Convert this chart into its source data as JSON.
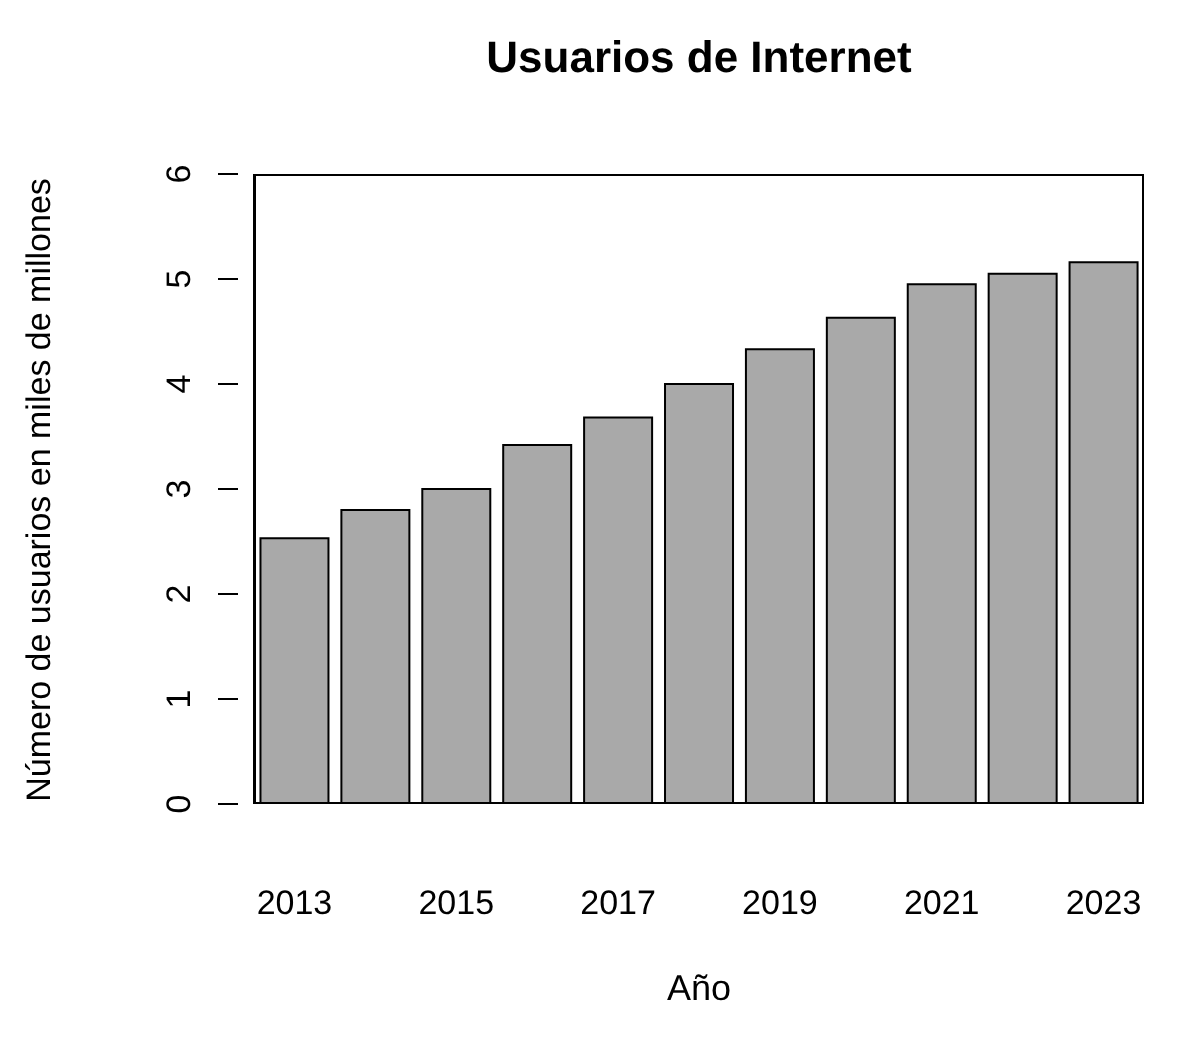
{
  "chart_data": {
    "type": "bar",
    "title": "Usuarios de Internet",
    "xlabel": "Año",
    "ylabel": "Número de usuarios en miles de millones",
    "categories": [
      "2013",
      null,
      "2015",
      null,
      "2017",
      null,
      "2019",
      null,
      "2021",
      null,
      "2023"
    ],
    "values": [
      2.53,
      2.8,
      3.0,
      3.42,
      3.68,
      4.0,
      4.33,
      4.63,
      4.95,
      5.05,
      5.16
    ],
    "color": "#a9a9a9",
    "ylim": [
      0,
      6
    ],
    "yticks": [
      0,
      1,
      2,
      3,
      4,
      5,
      6
    ]
  }
}
